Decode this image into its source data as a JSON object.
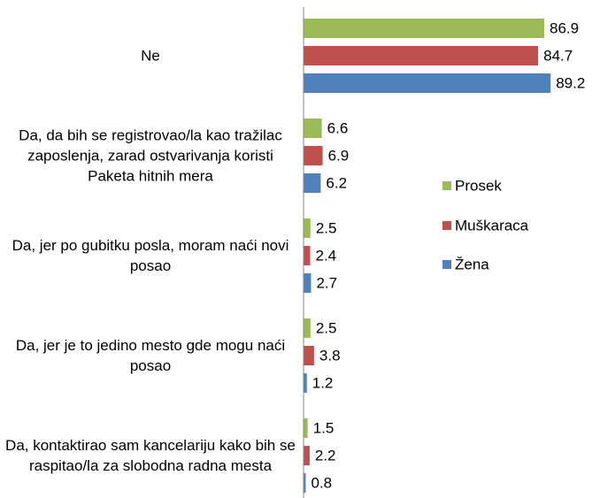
{
  "chart_data": {
    "type": "bar",
    "orientation": "horizontal",
    "categories": [
      "Ne",
      "Da, da bih se registrovao/la kao tražilac zaposlenja, zarad ostvarivanja koristi Paketa hitnih mera",
      "Da, jer po gubitku posla, moram naći novi posao",
      "Da, jer je to jedino mesto gde mogu naći posao",
      "Da, kontaktirao sam kancelariju kako bih se raspitao/la za slobodna radna mesta"
    ],
    "series": [
      {
        "name": "Prosek",
        "color": "#9bbb59",
        "values": [
          86.9,
          6.6,
          2.5,
          2.5,
          1.5
        ]
      },
      {
        "name": "Muškaraca",
        "color": "#c0504d",
        "values": [
          84.7,
          6.9,
          2.4,
          3.8,
          2.2
        ]
      },
      {
        "name": "Žena",
        "color": "#4f81bd",
        "values": [
          89.2,
          6.2,
          2.7,
          1.2,
          0.8
        ]
      }
    ],
    "xlim": [
      0,
      100
    ],
    "legend": "right"
  }
}
